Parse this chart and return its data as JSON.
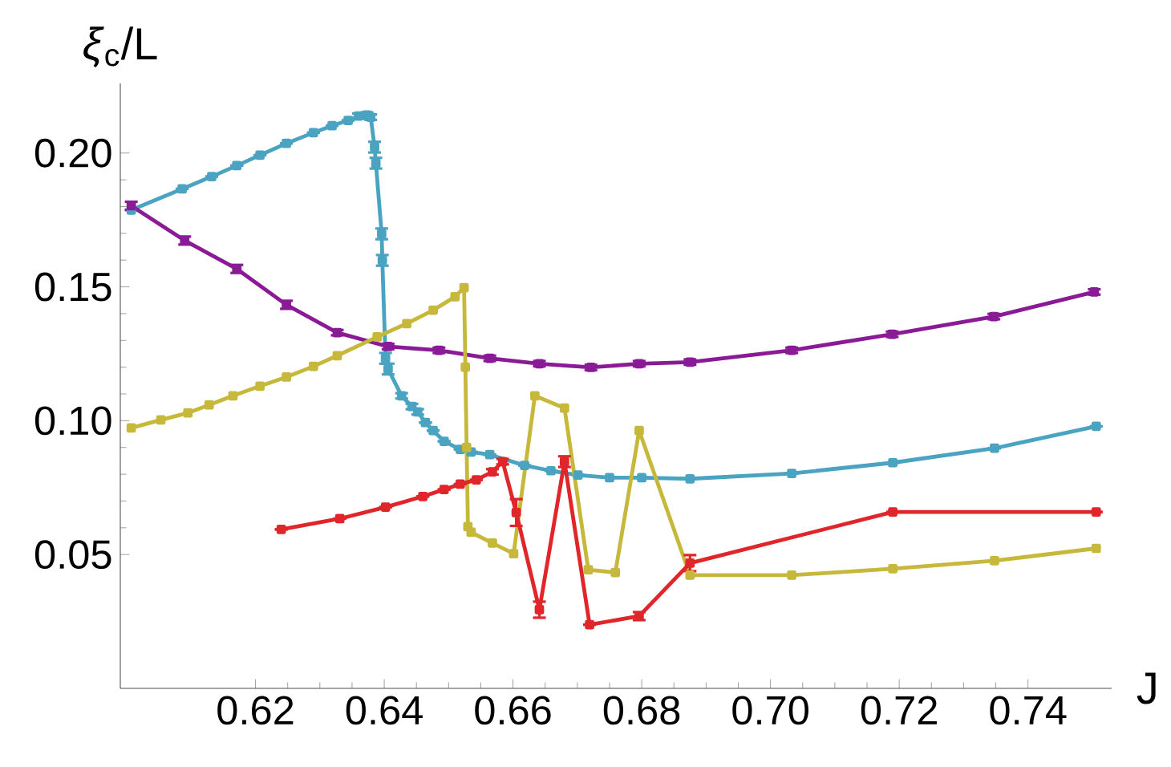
{
  "chart_data": {
    "type": "line",
    "xlabel": "J",
    "ylabel": "*ξ*$_{c}$/L",
    "xlim": [
      0.599,
      0.753
    ],
    "ylim": [
      0,
      0.226
    ],
    "xticks": [
      0.62,
      0.64,
      0.66,
      0.68,
      {
        "value": 0.7,
        "label": "0.70"
      },
      0.72,
      0.74
    ],
    "yticks": [
      0.05,
      {
        "value": 0.1,
        "label": "0.10"
      },
      0.15,
      {
        "value": 0.2,
        "label": "0.20"
      }
    ],
    "marker": "square",
    "line_style": "solid",
    "series": [
      {
        "color": "#4aa3c1",
        "x": [
          0.6007,
          0.6086,
          0.6132,
          0.6171,
          0.6207,
          0.6248,
          0.629,
          0.6319,
          0.6344,
          0.636,
          0.6373,
          0.6379,
          0.6385,
          0.6387,
          0.6396,
          0.6397,
          0.6402,
          0.6406,
          0.6427,
          0.6443,
          0.6452,
          0.6464,
          0.6476,
          0.6493,
          0.6518,
          0.6535,
          0.6564,
          0.6584,
          0.6618,
          0.6659,
          0.6701,
          0.675,
          0.68,
          0.6875,
          0.7033,
          0.719,
          0.7348,
          0.7506
        ],
        "values": [
          0.1787,
          0.1866,
          0.1912,
          0.1953,
          0.1992,
          0.2036,
          0.2076,
          0.2102,
          0.2122,
          0.2138,
          0.2142,
          0.2134,
          0.2022,
          0.1962,
          0.1698,
          0.1599,
          0.1233,
          0.1193,
          0.1093,
          0.1053,
          0.1033,
          0.0993,
          0.0963,
          0.0923,
          0.0893,
          0.0883,
          0.0873,
          null,
          0.0833,
          0.0813,
          0.0797,
          0.0787,
          0.0787,
          0.0783,
          0.0803,
          0.0843,
          0.0897,
          0.0979
        ],
        "errors": [
          null,
          null,
          null,
          null,
          null,
          null,
          null,
          null,
          null,
          0.001,
          0.001,
          0.001,
          0.002,
          0.002,
          0.002,
          0.002,
          0.002,
          0.002,
          0.001,
          0.001,
          0.001,
          null,
          null,
          null,
          null,
          null,
          null,
          null,
          null,
          null,
          null,
          null,
          null,
          null,
          null,
          null,
          null,
          null
        ]
      },
      {
        "color": "#8a1a96",
        "x": [
          0.6007,
          0.609,
          0.6171,
          0.6248,
          0.6327,
          0.6406,
          0.6485,
          0.6564,
          0.6641,
          0.6721,
          0.6796,
          0.6875,
          0.7033,
          0.7189,
          0.7347,
          0.7503
        ],
        "values": [
          0.1803,
          0.1673,
          0.1567,
          0.1433,
          0.1329,
          0.1277,
          0.1263,
          0.1233,
          0.1213,
          0.1199,
          0.1213,
          0.1219,
          0.1263,
          0.1323,
          0.1389,
          0.1481
        ],
        "errors": [
          0.0015,
          0.0015,
          0.0015,
          0.0015,
          0.001,
          0.001,
          0.001,
          0.001,
          0.001,
          0.001,
          0.001,
          0.001,
          0.001,
          0.001,
          0.001,
          0.001
        ]
      },
      {
        "color": "#c6b83a",
        "x": [
          0.6007,
          0.6053,
          0.6095,
          0.6128,
          0.6165,
          0.6207,
          0.6248,
          0.629,
          0.6327,
          0.6389,
          0.6435,
          0.6476,
          0.651,
          0.6524,
          0.6526,
          0.6528,
          0.653,
          0.6535,
          0.6568,
          0.6601,
          0.6634,
          0.668,
          0.6717,
          0.6759,
          0.6796,
          0.6875,
          0.7033,
          0.719,
          0.7348,
          0.7506
        ],
        "values": [
          0.0973,
          0.1003,
          0.1029,
          0.1059,
          0.1093,
          0.1129,
          0.1163,
          0.1203,
          0.1243,
          0.1313,
          0.1363,
          0.1413,
          0.1463,
          0.1497,
          0.12,
          0.09,
          0.0604,
          0.0583,
          0.0543,
          0.0503,
          0.1093,
          0.1047,
          0.0443,
          0.0433,
          0.0963,
          0.0423,
          0.0423,
          0.0447,
          0.0477,
          0.0523
        ]
      },
      {
        "color": "#e0262a",
        "x": [
          0.624,
          0.6331,
          0.6402,
          0.646,
          0.6493,
          0.6518,
          0.6543,
          0.6568,
          0.6584,
          0.6605,
          0.6641,
          0.668,
          0.6719,
          0.6796,
          0.6875,
          0.719,
          0.7506
        ],
        "values": [
          0.0594,
          0.0634,
          0.0677,
          0.0717,
          0.0743,
          0.0763,
          0.0779,
          0.0809,
          0.0847,
          0.0657,
          0.0294,
          0.0847,
          0.0238,
          0.027,
          0.0468,
          0.0659,
          0.0659
        ],
        "errors": [
          null,
          null,
          null,
          null,
          null,
          null,
          null,
          0.001,
          0.001,
          0.005,
          0.003,
          0.002,
          null,
          0.0015,
          0.003,
          null,
          null
        ]
      }
    ]
  }
}
